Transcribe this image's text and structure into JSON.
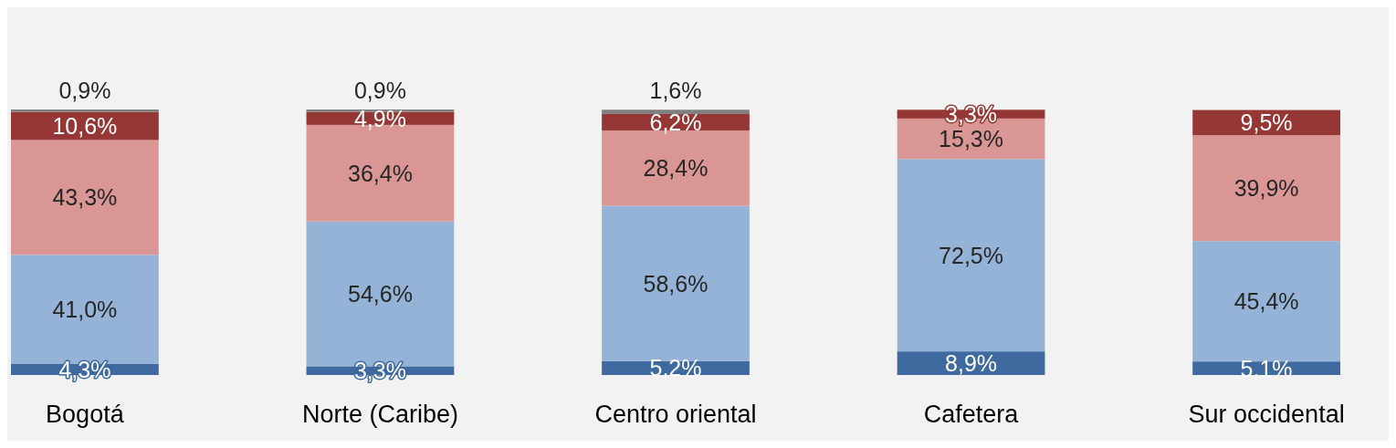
{
  "chart_data": {
    "type": "bar",
    "stacked": true,
    "grid": false,
    "categories": [
      "Bogotá",
      "Norte (Caribe)",
      "Centro oriental",
      "Cafetera",
      "Sur occidental"
    ],
    "series": [
      {
        "color": "#3e6aa0",
        "values": [
          4.3,
          3.3,
          5.2,
          8.9,
          5.1
        ],
        "value_labels": [
          "4,3%",
          "3,3%",
          "5,2%",
          "8,9%",
          "5,1%"
        ]
      },
      {
        "color": "#95b3d7",
        "values": [
          41.0,
          54.6,
          58.6,
          72.5,
          45.4
        ],
        "value_labels": [
          "41,0%",
          "54,6%",
          "58,6%",
          "72,5%",
          "45,4%"
        ]
      },
      {
        "color": "#da9694",
        "values": [
          43.3,
          36.4,
          28.4,
          15.3,
          39.9
        ],
        "value_labels": [
          "43,3%",
          "36,4%",
          "28,4%",
          "15,3%",
          "39,9%"
        ]
      },
      {
        "color": "#953735",
        "values": [
          10.6,
          4.9,
          6.2,
          3.3,
          9.5
        ],
        "value_labels": [
          "10,6%",
          "4,9%",
          "6,2%",
          "3,3%",
          "9,5%"
        ]
      },
      {
        "color": "#7f7f7f",
        "values": [
          0.9,
          0.9,
          1.6,
          null,
          null
        ],
        "value_labels": [
          "0,9%",
          "0,9%",
          "1,6%",
          null,
          null
        ]
      }
    ]
  }
}
